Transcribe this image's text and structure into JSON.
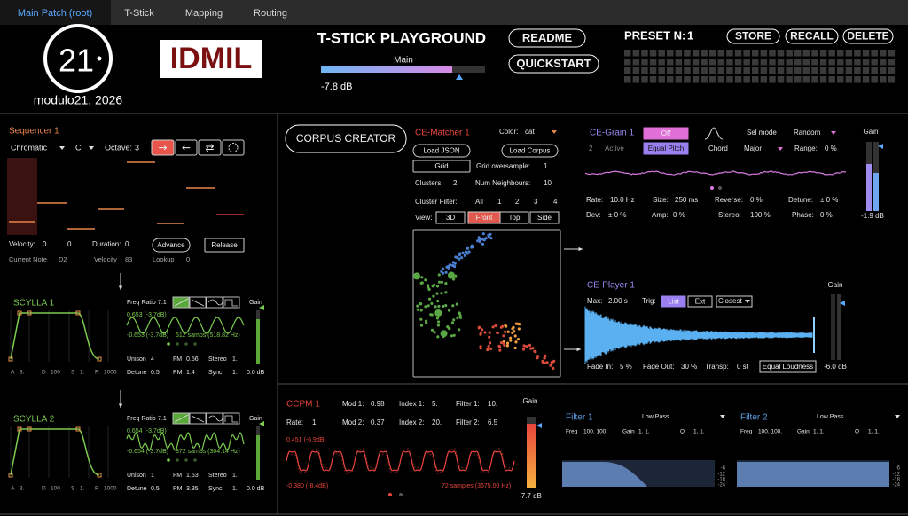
{
  "tabs": [
    "Main Patch (root)",
    "T-Stick",
    "Mapping",
    "Routing"
  ],
  "header": {
    "logo": "21",
    "caption": "modulo21, 2026",
    "lab": "IDMIL",
    "title": "T-STICK PLAYGROUND",
    "meter_label": "Main",
    "meter_value": "-7.8 dB",
    "buttons": [
      "README",
      "QUICKSTART"
    ],
    "preset_label": "PRESET N:",
    "preset_number": "1",
    "preset_buttons": [
      "STORE",
      "RECALL",
      "DELETE"
    ]
  },
  "sequencer": {
    "title": "Sequencer 1",
    "scale": "Chromatic",
    "key": "C",
    "octave_label": "Octave:",
    "octave": "3",
    "direction_buttons": [
      "→",
      "←",
      "⇄"
    ],
    "velocity_label": "Velocity:",
    "velocity": [
      "0",
      "0"
    ],
    "duration_label": "Duration:",
    "duration": "0",
    "buttons": [
      "Advance",
      "Release"
    ],
    "current_note_label": "Current Note",
    "current_note": "D2",
    "note_velocity_label": "Velocity",
    "note_velocity": "83",
    "lookup_label": "Lookup",
    "lookup": "0"
  },
  "synths": [
    {
      "title": "SCYLLA 1",
      "freq_ratio_label": "Freq Ratio",
      "freq_ratio": "7.1",
      "gain_label": "Gain",
      "gain": "0.0 dB",
      "max": "0.653 (-3.7dB)",
      "min": "-0.653 (-3.7dB)",
      "samples": "512 samps (518.82 Hz)",
      "params": [
        [
          "Unison",
          "4"
        ],
        [
          "FM",
          "0.56"
        ],
        [
          "Stereo",
          "1."
        ],
        [
          "Detune",
          "0.5"
        ],
        [
          "PM",
          "1.4"
        ],
        [
          "Sync",
          "1."
        ]
      ],
      "envelope": [
        [
          "A",
          "3."
        ],
        [
          "D",
          "100"
        ],
        [
          "S",
          "1."
        ],
        [
          "R",
          "1000"
        ]
      ]
    },
    {
      "title": "SCYLLA 2",
      "freq_ratio_label": "Freq Ratio",
      "freq_ratio": "7.1",
      "gain_label": "Gain",
      "gain": "0.0 dB",
      "max": "0.654 (-3.7dB)",
      "min": "-0.654 (-3.7dB)",
      "samples": "872 samps (304.14 Hz)",
      "params": [
        [
          "Unison",
          "1"
        ],
        [
          "FM",
          "1.53"
        ],
        [
          "Stereo",
          "1."
        ],
        [
          "Detune",
          "0.5"
        ],
        [
          "PM",
          "3.35"
        ],
        [
          "Sync",
          "1."
        ]
      ],
      "envelope": [
        [
          "A",
          "3."
        ],
        [
          "D",
          "100"
        ],
        [
          "S",
          "1."
        ],
        [
          "R",
          "1000"
        ]
      ]
    }
  ],
  "corpus_creator": "CORPUS CREATOR",
  "matcher": {
    "title": "CE-Matcher 1",
    "color_label": "Color:",
    "color": "cat",
    "buttons": [
      "Load JSON",
      "Load Corpus",
      "Grid"
    ],
    "oversample_label": "Grid oversample:",
    "oversample": "1",
    "clusters_label": "Clusters:",
    "clusters": "2",
    "neighbours_label": "Num Neighbours:",
    "neighbours": "10",
    "filter_label": "Cluster Filter:",
    "filters": [
      "All",
      "1",
      "2",
      "3",
      "4"
    ],
    "view_label": "View:",
    "views": [
      "3D",
      "Front",
      "Top",
      "Side"
    ]
  },
  "grain": {
    "title": "CE-Grain 1",
    "toggle": "Off",
    "voices": "2",
    "voices_label": "Active",
    "pitch_button": "Equal Pitch",
    "sel_mode_label": "Sel mode",
    "sel_mode": "Random",
    "chord_label": "Chord",
    "chord": "Major",
    "range_label": "Range:",
    "range": "0 %",
    "params": [
      [
        "Rate:",
        "10.0 Hz"
      ],
      [
        "Size:",
        "250 ms"
      ],
      [
        "Reverse:",
        "0 %"
      ],
      [
        "Detune:",
        "± 0 %"
      ],
      [
        "Dev:",
        "± 0 %"
      ],
      [
        "Amp:",
        "0 %"
      ],
      [
        "Stereo:",
        "100 %"
      ],
      [
        "Phase:",
        "0 %"
      ]
    ],
    "gain_label": "Gain",
    "gain": "-1.9 dB"
  },
  "player": {
    "title": "CE-Player 1",
    "max_label": "Max:",
    "max": "2.00 s",
    "trig_label": "Trig:",
    "trig": [
      "List",
      "Ext"
    ],
    "mode": "Closest",
    "params": [
      [
        "Fade In:",
        "5 %"
      ],
      [
        "Fade Out:",
        "30 %"
      ],
      [
        "Transp:",
        "0 st"
      ]
    ],
    "loudness_button": "Equal Loudness",
    "gain_label": "Gain",
    "gain": "-6.0 dB"
  },
  "ccpm": {
    "title": "CCPM 1",
    "params": [
      [
        "Mod 1:",
        "0.98"
      ],
      [
        "Index 1:",
        "5."
      ],
      [
        "Filter 1:",
        "10."
      ],
      [
        "Rate:",
        "1."
      ],
      [
        "Mod 2:",
        "0.37"
      ],
      [
        "Index 2:",
        "20."
      ],
      [
        "Filter 2:",
        "6.5"
      ]
    ],
    "max": "0.451 (-6.9dB)",
    "min": "-0.380 (-8.4dB)",
    "samples": "72 samples (3675.00 Hz)",
    "gain_label": "Gain",
    "gain": "-7.7 dB"
  },
  "filters": [
    {
      "title": "Filter 1",
      "mode": "Low Pass",
      "freq_label": "Freq",
      "freq": "100. 100.",
      "gain_label": "Gain",
      "gain": "1. 1.",
      "q_label": "Q",
      "q": "1. 1.",
      "scale": [
        "-6",
        "-12",
        "-18",
        "-24"
      ]
    },
    {
      "title": "Filter 2",
      "mode": "Low Pass",
      "freq_label": "Freq",
      "freq": "100. 100.",
      "gain_label": "Gain",
      "gain": "1. 1.",
      "q_label": "Q",
      "q": "1. 1.",
      "scale": [
        "-6",
        "-12",
        "-18",
        "-24"
      ]
    }
  ]
}
